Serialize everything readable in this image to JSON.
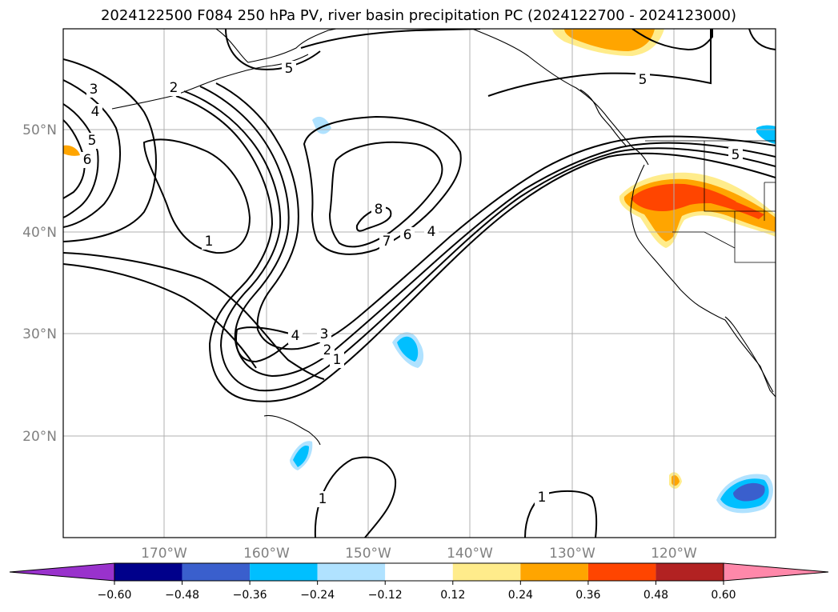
{
  "title": "2024122500 F084 250 hPa PV, river basin precipitation PC (2024122700 - 2024123000)",
  "lat_labels": [
    "50°N",
    "40°N",
    "30°N",
    "20°N"
  ],
  "lon_labels": [
    "170°W",
    "160°W",
    "150°W",
    "140°W",
    "130°W",
    "120°W"
  ],
  "contour_labels": [
    "3",
    "4",
    "5",
    "6",
    "2",
    "1",
    "5",
    "8",
    "7",
    "6",
    "4",
    "4",
    "3",
    "2",
    "1",
    "5",
    "5",
    "1",
    "1"
  ],
  "colorbar": {
    "ticks": [
      "−0.60",
      "−0.48",
      "−0.36",
      "−0.24",
      "−0.12",
      "0.12",
      "0.24",
      "0.36",
      "0.48",
      "0.60"
    ],
    "colors": [
      "#9932cc",
      "#00008b",
      "#3a5fcd",
      "#00bfff",
      "#b0e2ff",
      "#ffffff",
      "#ffec8b",
      "#ffa500",
      "#ff4500",
      "#b22222",
      "#ff88aa"
    ]
  }
}
